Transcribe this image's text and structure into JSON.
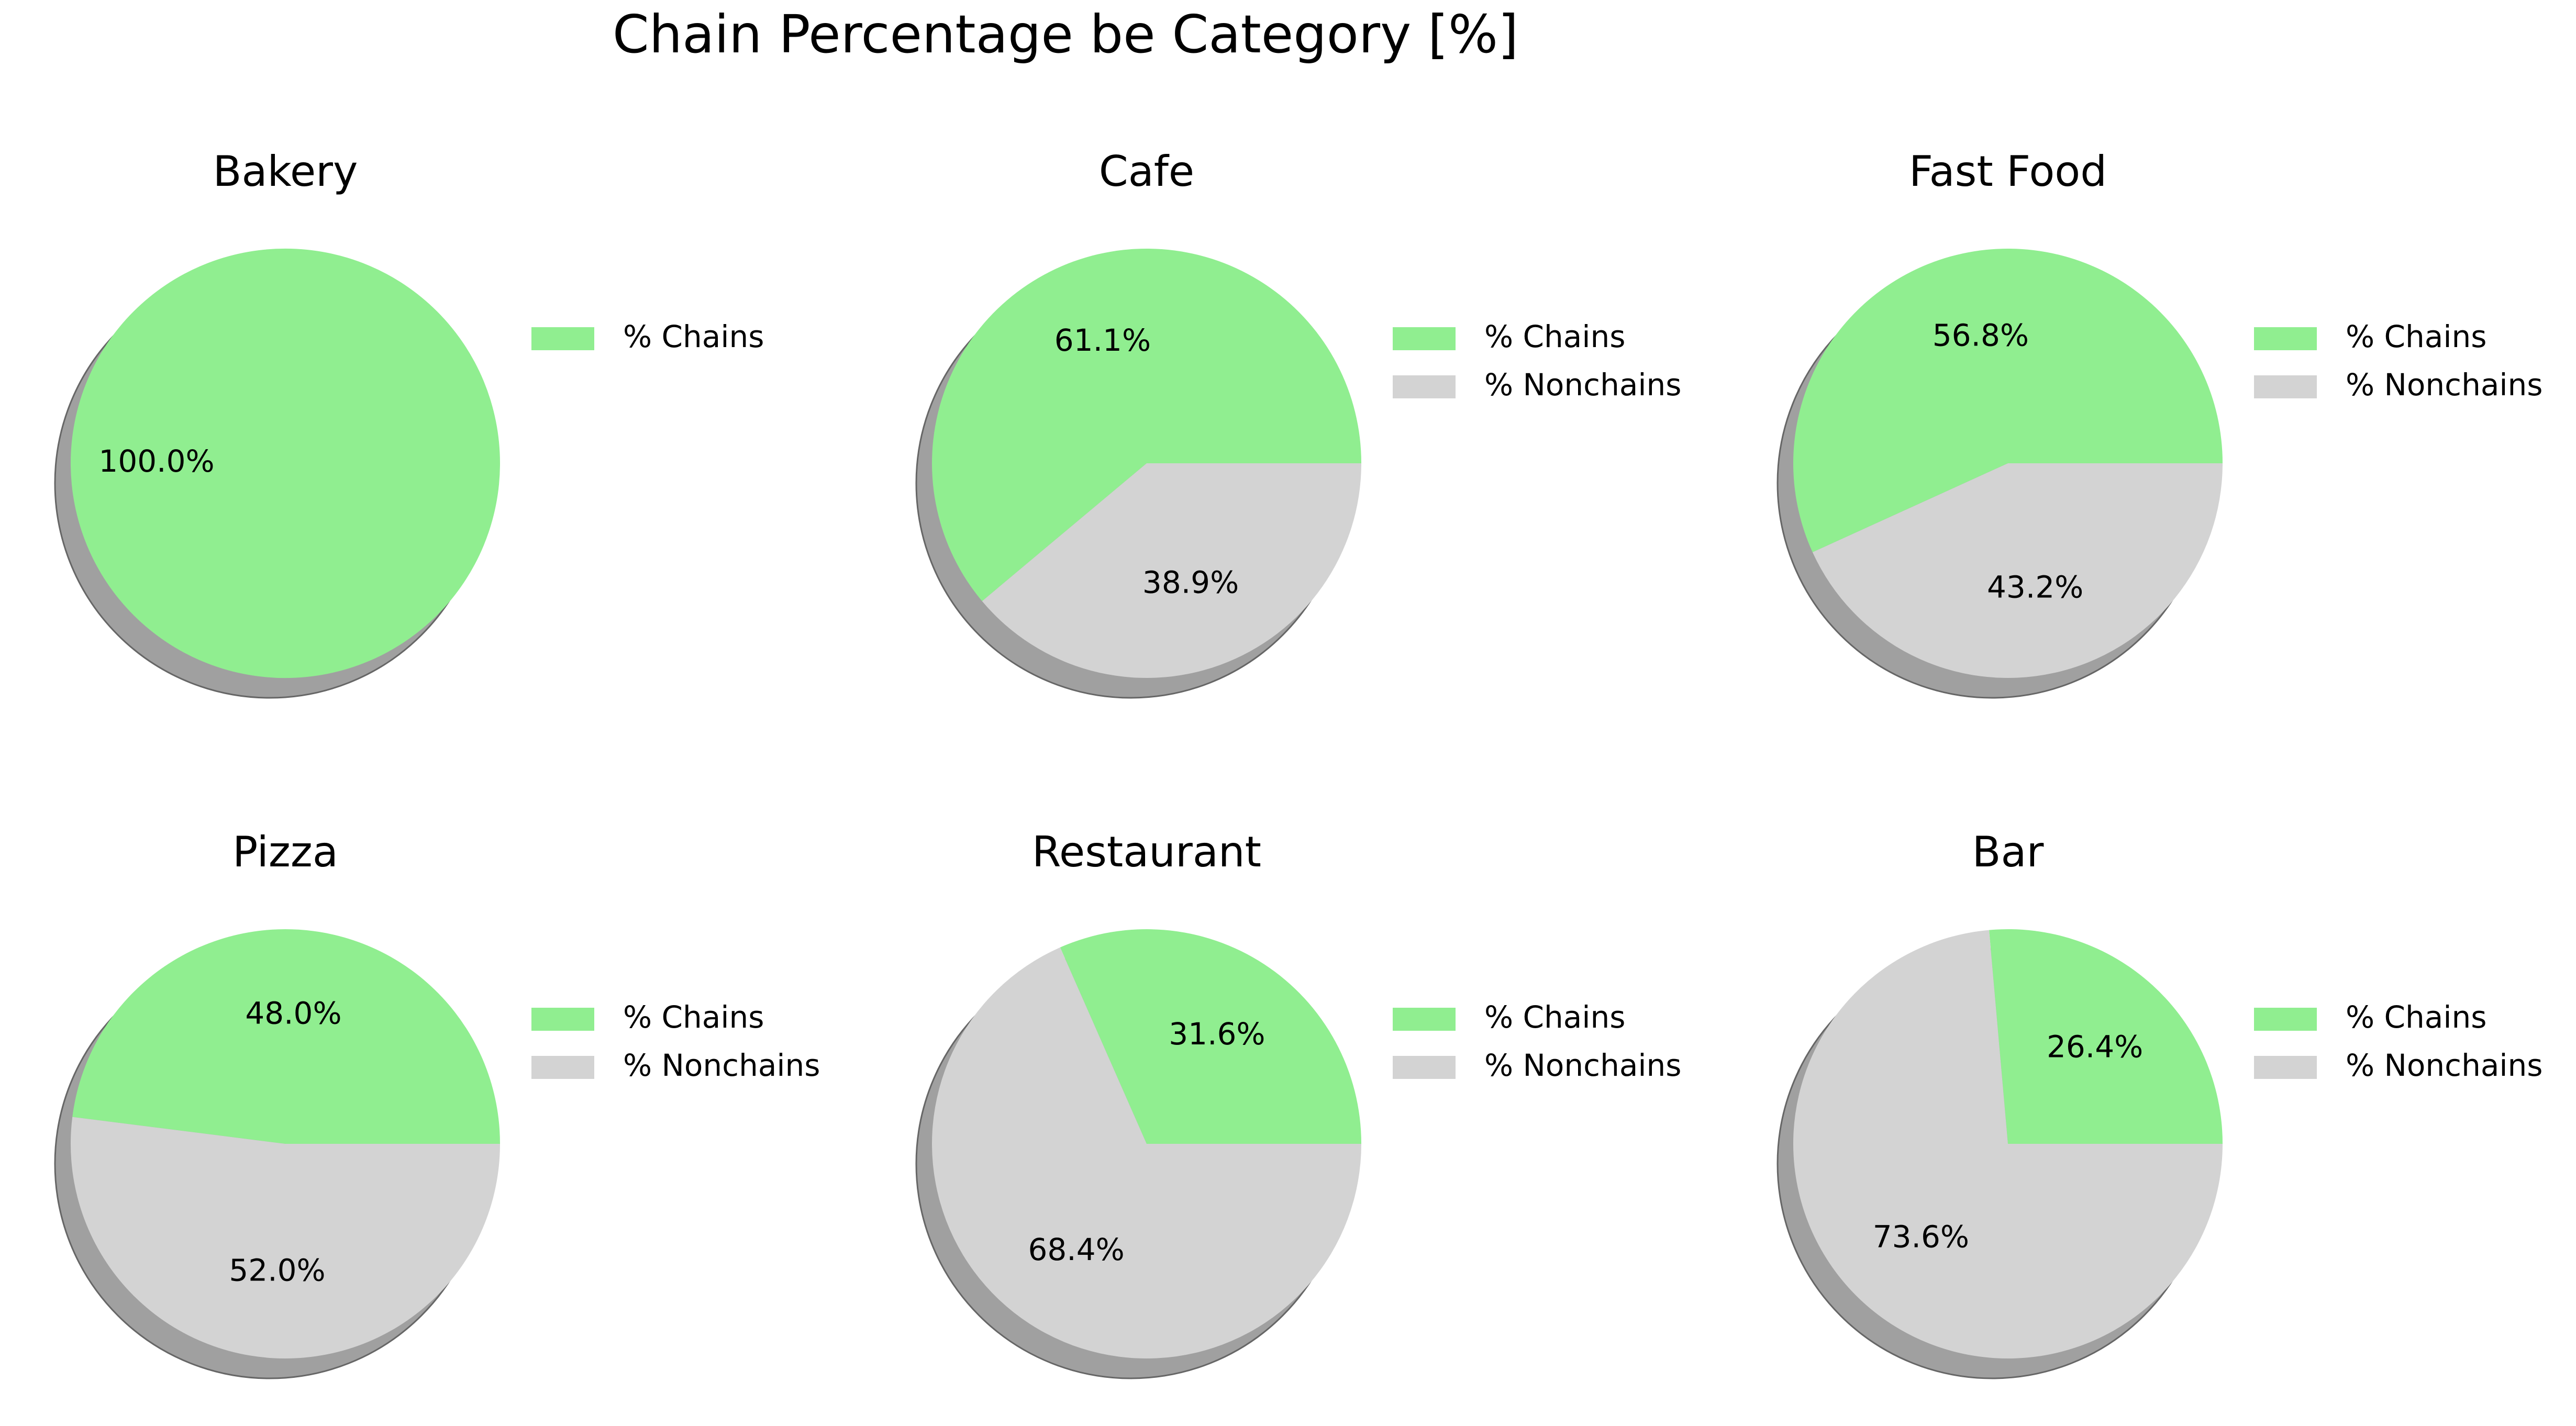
{
  "title": "Chain Percentage be Category [%]",
  "colors": {
    "chains": "#90ee90",
    "nonchains": "#d3d3d3",
    "shadow": "#a0a0a0",
    "shadow_edge": "#666666"
  },
  "chart_data": [
    {
      "type": "pie",
      "title": "Bakery",
      "labels": [
        "% Chains"
      ],
      "values": [
        100.0
      ],
      "value_labels": [
        "100.0%"
      ]
    },
    {
      "type": "pie",
      "title": "Cafe",
      "labels": [
        "% Chains",
        "% Nonchains"
      ],
      "values": [
        61.1,
        38.9
      ],
      "value_labels": [
        "61.1%",
        "38.9%"
      ]
    },
    {
      "type": "pie",
      "title": "Fast Food",
      "labels": [
        "% Chains",
        "% Nonchains"
      ],
      "values": [
        56.8,
        43.2
      ],
      "value_labels": [
        "56.8%",
        "43.2%"
      ]
    },
    {
      "type": "pie",
      "title": "Pizza",
      "labels": [
        "% Chains",
        "% Nonchains"
      ],
      "values": [
        48.0,
        52.0
      ],
      "value_labels": [
        "48.0%",
        "52.0%"
      ]
    },
    {
      "type": "pie",
      "title": "Restaurant",
      "labels": [
        "% Chains",
        "% Nonchains"
      ],
      "values": [
        31.6,
        68.4
      ],
      "value_labels": [
        "31.6%",
        "68.4%"
      ]
    },
    {
      "type": "pie",
      "title": "Bar",
      "labels": [
        "% Chains",
        "% Nonchains"
      ],
      "values": [
        26.4,
        73.6
      ],
      "value_labels": [
        "26.4%",
        "73.6%"
      ]
    }
  ]
}
